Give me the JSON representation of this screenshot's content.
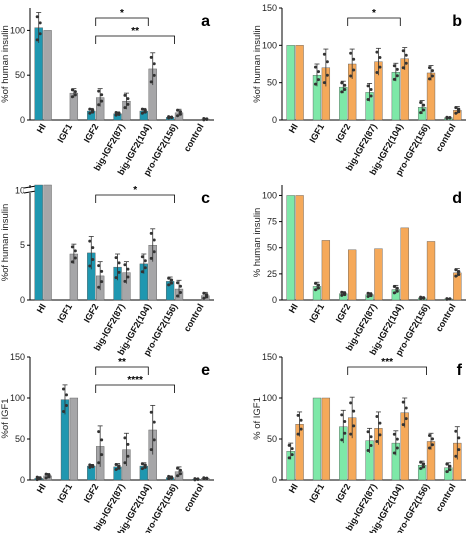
{
  "figure": {
    "categories": [
      "HI",
      "IGF1",
      "IGF2",
      "big-IGF2(87)",
      "big-IGF2(104)",
      "pro-IGF2(156)",
      "control"
    ]
  },
  "chart_data": [
    {
      "type": "bar",
      "panel": "a",
      "ylabel": "%of human insulin",
      "ylim": [
        0,
        125
      ],
      "yticks": [
        0,
        50,
        100
      ],
      "categories": [
        "HI",
        "IGF1",
        "IGF2",
        "big-IGF2(87)",
        "big-IGF2(104)",
        "pro-IGF2(156)",
        "control"
      ],
      "color_a": "#1f97b0",
      "color_b": "#a6a6a8",
      "series": [
        {
          "values": [
            103,
            null,
            10,
            7,
            10,
            3,
            null
          ],
          "errors": [
            17,
            0,
            3,
            2,
            3,
            1,
            0
          ]
        },
        {
          "values": [
            100,
            30,
            25,
            21,
            57,
            8,
            1
          ],
          "errors": [
            0,
            5,
            10,
            9,
            18,
            4,
            1
          ]
        }
      ],
      "significance": [
        {
          "from": 2,
          "to": 4,
          "label": "*"
        },
        {
          "from": 2,
          "to": 5,
          "label": "**"
        }
      ]
    },
    {
      "type": "bar",
      "panel": "b",
      "ylabel": "%of human insulin",
      "ylim": [
        0,
        150
      ],
      "yticks": [
        0,
        50,
        100,
        150
      ],
      "categories": [
        "HI",
        "IGF1",
        "IGF2",
        "big-IGF2(87)",
        "big-IGF2(104)",
        "pro-IGF2(156)",
        "control"
      ],
      "color_a": "#7ee8a8",
      "color_b": "#f5a95a",
      "series": [
        {
          "values": [
            100,
            60,
            44,
            37,
            64,
            17,
            3
          ],
          "errors": [
            0,
            15,
            8,
            12,
            12,
            9,
            1
          ]
        },
        {
          "values": [
            100,
            70,
            75,
            78,
            82,
            63,
            13
          ],
          "errors": [
            0,
            25,
            20,
            18,
            15,
            10,
            5
          ]
        }
      ],
      "significance": [
        {
          "from": 2,
          "to": 4,
          "label": "*"
        }
      ]
    },
    {
      "type": "bar",
      "panel": "c",
      "ylabel": "%of human insulin",
      "ylim": [
        0,
        10.5
      ],
      "yticks": [
        0,
        5,
        10
      ],
      "axis_break": true,
      "categories": [
        "HI",
        "IGF1",
        "IGF2",
        "big-IGF2(87)",
        "big-IGF2(104)",
        "pro-IGF2(156)",
        "control"
      ],
      "color_a": "#1f97b0",
      "color_b": "#a6a6a8",
      "series": [
        {
          "values": [
            100,
            null,
            4.3,
            3.0,
            3.3,
            1.7,
            null
          ],
          "errors": [
            0,
            0,
            1.5,
            1.2,
            0.9,
            0.4,
            0
          ]
        },
        {
          "values": [
            100,
            4.2,
            2.2,
            2.5,
            5.0,
            1.0,
            0.4
          ],
          "errors": [
            0,
            0.9,
            1.3,
            1.0,
            1.5,
            0.8,
            0.3
          ]
        }
      ],
      "significance": [
        {
          "from": 2,
          "to": 5,
          "label": "*"
        }
      ]
    },
    {
      "type": "bar",
      "panel": "d",
      "ylabel": "% human insulin",
      "ylim": [
        0,
        110
      ],
      "yticks": [
        0,
        25,
        50,
        75,
        100
      ],
      "categories": [
        "HI",
        "IGF1",
        "IGF2",
        "big-IGF2(87)",
        "big-IGF2(104)",
        "pro-IGF2(156)",
        "control"
      ],
      "color_a": "#7ee8a8",
      "color_b": "#f5a95a",
      "series": [
        {
          "values": [
            100,
            13,
            6,
            5,
            10,
            2,
            1
          ],
          "errors": [
            0,
            4,
            2,
            2,
            4,
            1,
            0.5
          ]
        },
        {
          "values": [
            100,
            57,
            48,
            49,
            69,
            56,
            26
          ],
          "errors": [
            0,
            0,
            0,
            0,
            0,
            0,
            4
          ]
        }
      ],
      "significance": []
    },
    {
      "type": "bar",
      "panel": "e",
      "ylabel": "%of IGF1",
      "ylim": [
        0,
        150
      ],
      "yticks": [
        0,
        50,
        100,
        150
      ],
      "categories": [
        "HI",
        "IGF1",
        "IGF2",
        "big-IGF2(87)",
        "big-IGF2(104)",
        "pro-IGF2(156)",
        "control"
      ],
      "color_a": "#1f97b0",
      "color_b": "#a6a6a8",
      "series": [
        {
          "values": [
            2,
            98,
            17,
            16,
            17,
            3,
            1
          ],
          "errors": [
            2,
            18,
            2,
            4,
            4,
            2,
            1
          ]
        },
        {
          "values": [
            5,
            100,
            41,
            37,
            61,
            10,
            2
          ],
          "errors": [
            3,
            0,
            25,
            20,
            30,
            6,
            1
          ]
        }
      ],
      "significance": [
        {
          "from": 2,
          "to": 4,
          "label": "**"
        },
        {
          "from": 2,
          "to": 5,
          "label": "****"
        }
      ]
    },
    {
      "type": "bar",
      "panel": "f",
      "ylabel": "% of IGF1",
      "ylim": [
        0,
        150
      ],
      "yticks": [
        0,
        50,
        100,
        150
      ],
      "categories": [
        "HI",
        "IGF1",
        "IGF2",
        "big-IGF2(87)",
        "big-IGF2(104)",
        "pro-IGF2(156)",
        "control"
      ],
      "color_a": "#7ee8a8",
      "color_b": "#f5a95a",
      "series": [
        {
          "values": [
            35,
            100,
            65,
            48,
            45,
            18,
            15
          ],
          "errors": [
            10,
            0,
            20,
            15,
            15,
            5,
            6
          ]
        },
        {
          "values": [
            68,
            100,
            76,
            63,
            82,
            47,
            45
          ],
          "errors": [
            15,
            0,
            25,
            20,
            18,
            10,
            20
          ]
        }
      ],
      "significance": [
        {
          "from": 2,
          "to": 5,
          "label": "***"
        }
      ]
    }
  ]
}
